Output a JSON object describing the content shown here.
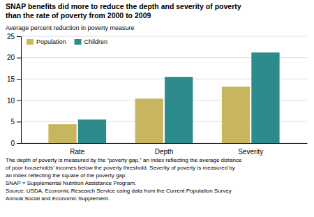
{
  "chart_data": {
    "type": "bar",
    "title": [
      "SNAP benefits did more to reduce the depth and severity of poverty",
      "than the rate of poverty from 2000 to 2009"
    ],
    "ylabel": "Average percent reduction in poverty measure",
    "categories": [
      "Rate",
      "Depth",
      "Severity"
    ],
    "series": [
      {
        "name": "Population",
        "color": "#C8B560",
        "values": [
          4.4,
          10.4,
          13.2
        ]
      },
      {
        "name": "Children",
        "color": "#2E8B8B",
        "values": [
          5.5,
          15.5,
          21.2
        ]
      }
    ],
    "ylim": [
      0,
      25
    ],
    "yticks": [
      0,
      5,
      10,
      15,
      20,
      25
    ],
    "grid": true,
    "legend": "upper left",
    "annotations": [
      "The depth of poverty is measured by the “poverty gap,” an index reflecting the average distance",
      "of poor households’ incomes below the poverty threshold.  Severity of poverty is measured by",
      "an index reflecting the square of the poverty gap.",
      "SNAP = Supplemental Nutrition Assistance Program.",
      "Source: USDA, Economic Research Service using data from the Current Population Survey",
      "Annual Social and Economic Supplement."
    ]
  }
}
